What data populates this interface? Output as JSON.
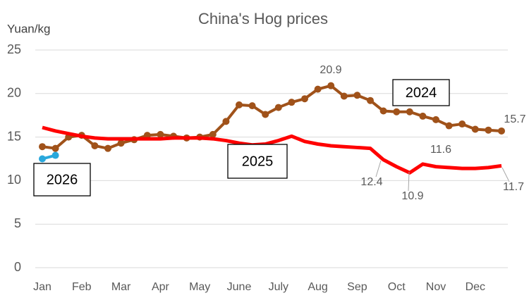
{
  "chart_data": {
    "type": "line",
    "title": "China's Hog prices",
    "y_label": "Yuan/kg",
    "categories": [
      "Jan",
      null,
      null,
      "Feb",
      null,
      null,
      "Mar",
      null,
      null,
      "Apr",
      null,
      null,
      "May",
      null,
      null,
      "June",
      null,
      null,
      "July",
      null,
      null,
      "Aug",
      null,
      null,
      "Sep",
      null,
      null,
      "Oct",
      null,
      null,
      "Nov",
      null,
      null,
      "Dec",
      null,
      null
    ],
    "series": [
      {
        "name": "2024",
        "color": "#a0521a",
        "markers": true,
        "values": [
          13.9,
          13.7,
          15.0,
          15.2,
          14.0,
          13.7,
          14.3,
          14.7,
          15.2,
          15.3,
          15.1,
          14.9,
          15.0,
          15.3,
          16.8,
          18.7,
          18.6,
          17.6,
          18.4,
          19.0,
          19.4,
          20.5,
          20.9,
          19.7,
          19.8,
          19.2,
          18.0,
          17.9,
          17.9,
          17.4,
          17.0,
          16.3,
          16.5,
          15.9,
          15.8,
          15.7
        ],
        "value_labels": [
          null,
          null,
          null,
          null,
          null,
          null,
          null,
          null,
          null,
          null,
          null,
          null,
          null,
          null,
          null,
          null,
          null,
          null,
          null,
          null,
          null,
          null,
          "20.9",
          null,
          null,
          null,
          null,
          null,
          null,
          null,
          null,
          null,
          null,
          null,
          null,
          "15.7"
        ]
      },
      {
        "name": "2025",
        "color": "#ff0000",
        "markers": false,
        "values": [
          16.1,
          15.7,
          15.4,
          15.1,
          14.9,
          14.8,
          14.8,
          14.8,
          14.8,
          14.8,
          14.9,
          14.9,
          14.9,
          14.8,
          14.6,
          14.3,
          14.1,
          14.2,
          14.6,
          15.1,
          14.5,
          14.2,
          14.0,
          13.9,
          13.8,
          13.7,
          12.4,
          11.6,
          10.9,
          11.9,
          11.6,
          11.5,
          11.4,
          11.4,
          11.5,
          11.7
        ],
        "value_labels": [
          null,
          null,
          null,
          null,
          null,
          null,
          null,
          null,
          null,
          null,
          null,
          null,
          null,
          null,
          null,
          null,
          null,
          null,
          null,
          null,
          null,
          null,
          null,
          null,
          null,
          null,
          "12.4",
          null,
          "10.9",
          null,
          "11.6",
          null,
          null,
          null,
          null,
          "11.7"
        ]
      },
      {
        "name": "2026",
        "color": "#29a8dc",
        "markers": true,
        "values": [
          12.5,
          12.9,
          null,
          null,
          null,
          null,
          null,
          null,
          null,
          null,
          null,
          null,
          null,
          null,
          null,
          null,
          null,
          null,
          null,
          null,
          null,
          null,
          null,
          null,
          null,
          null,
          null,
          null,
          null,
          null,
          null,
          null,
          null,
          null,
          null,
          null
        ],
        "value_labels": [
          null,
          null,
          null,
          null,
          null,
          null,
          null,
          null,
          null,
          null,
          null,
          null,
          null,
          null,
          null,
          null,
          null,
          null,
          null,
          null,
          null,
          null,
          null,
          null,
          null,
          null,
          null,
          null,
          null,
          null,
          null,
          null,
          null,
          null,
          null,
          null
        ]
      }
    ],
    "ylim": [
      0,
      25
    ],
    "yticks": [
      0,
      5,
      10,
      15,
      20,
      25
    ],
    "grid": true
  }
}
